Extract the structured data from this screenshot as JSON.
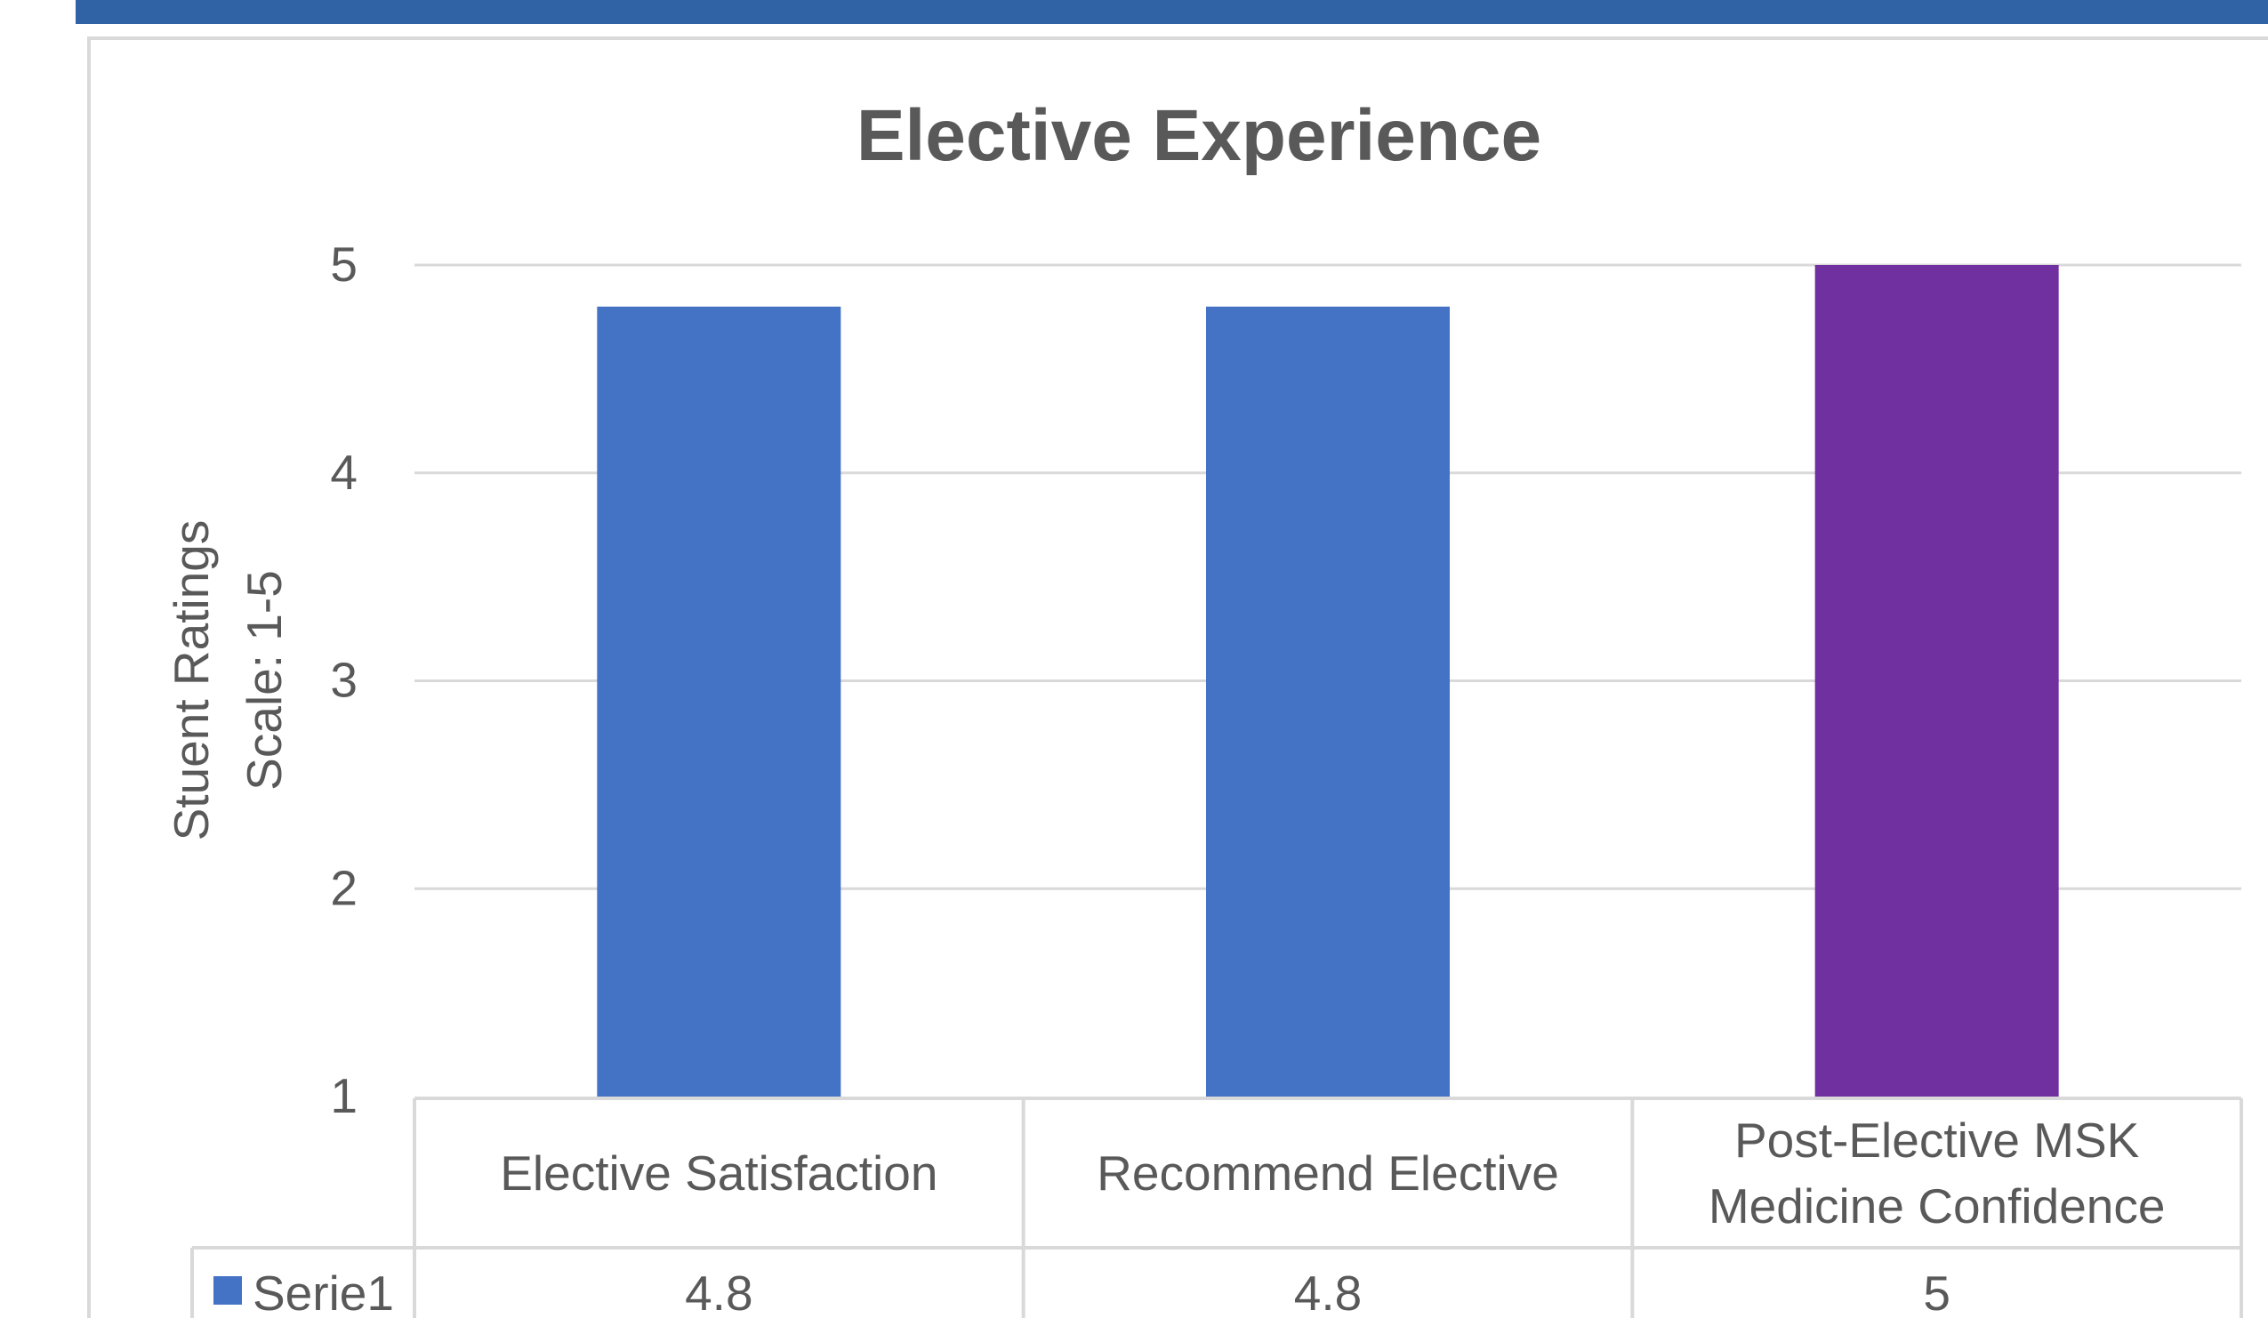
{
  "chart_data": {
    "type": "bar",
    "title": "Elective Experience",
    "ylabel_lines": [
      "Stuent Ratings",
      "Scale: 1-5"
    ],
    "ylim": [
      1,
      5
    ],
    "yticks": [
      1,
      2,
      3,
      4,
      5
    ],
    "grid": true,
    "categories": [
      [
        "Elective Satisfaction"
      ],
      [
        "Recommend Elective"
      ],
      [
        "Post-Elective MSK",
        "Medicine Confidence"
      ]
    ],
    "series": [
      {
        "name": "Serie1",
        "values": [
          4.8,
          4.8,
          5
        ],
        "value_labels": [
          "4.8",
          "4.8",
          "5"
        ],
        "color": "#4472C4",
        "point_colors": [
          "#4472C4",
          "#4472C4",
          "#7030A0"
        ]
      }
    ],
    "legend_placement": "data-table"
  },
  "colors": {
    "header_band": "#2F63A5",
    "gridline": "#D9D9D9",
    "text": "#595959"
  }
}
